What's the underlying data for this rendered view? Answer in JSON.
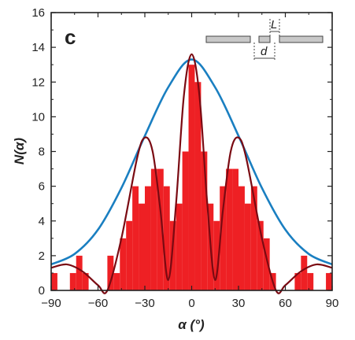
{
  "chart_data": {
    "type": "bar",
    "panel_label": "c",
    "xlabel": "α (°)",
    "ylabel": "N(α)",
    "xlim": [
      -90,
      90
    ],
    "ylim": [
      0,
      16
    ],
    "x_ticks": [
      -90,
      -60,
      -30,
      0,
      30,
      60,
      90
    ],
    "x_tick_labels": [
      "−90",
      "−60",
      "−30",
      "0",
      "30",
      "60",
      "90"
    ],
    "y_ticks": [
      0,
      2,
      4,
      6,
      8,
      10,
      12,
      14,
      16
    ],
    "y_tick_labels": [
      "0",
      "2",
      "4",
      "6",
      "8",
      "10",
      "12",
      "14",
      "16"
    ],
    "grid": false,
    "histogram": {
      "bin_width": 4,
      "bin_start": -90,
      "counts": [
        1,
        0,
        0,
        1,
        2,
        1,
        0,
        0,
        0,
        2,
        1,
        3,
        4,
        6,
        5,
        6,
        7,
        7,
        6,
        4,
        5,
        8,
        13,
        12,
        8,
        5,
        4,
        6,
        7,
        7,
        6,
        5,
        6,
        4,
        3,
        1,
        0,
        0,
        0,
        1,
        2,
        1,
        0,
        0,
        1
      ],
      "color": "#ee2024"
    },
    "series": [
      {
        "style": "envelope",
        "color": "#1a7fc1",
        "x": [
          -90,
          -75,
          -60,
          -45,
          -30,
          -15,
          0,
          15,
          30,
          45,
          60,
          75,
          90
        ],
        "y": [
          1.5,
          2.1,
          3.5,
          5.9,
          8.9,
          11.7,
          13.3,
          11.7,
          8.9,
          5.9,
          3.5,
          2.1,
          1.5
        ]
      },
      {
        "style": "fit",
        "color": "#7a0a12",
        "x": [
          -90,
          -80,
          -70,
          -60,
          -54,
          -45,
          -35,
          -30,
          -25,
          -20,
          -15,
          -10,
          -5,
          0,
          5,
          10,
          15,
          20,
          25,
          30,
          35,
          45,
          54,
          60,
          70,
          80,
          90
        ],
        "y": [
          1.3,
          1.5,
          1.1,
          0.3,
          0.0,
          3.0,
          7.6,
          8.8,
          8.0,
          4.6,
          0.6,
          5.0,
          11.2,
          13.6,
          11.2,
          5.0,
          0.6,
          4.6,
          8.0,
          8.8,
          7.6,
          3.0,
          0.0,
          0.3,
          1.1,
          1.5,
          1.3
        ]
      }
    ],
    "inset": {
      "labels": [
        "L",
        "d"
      ],
      "fill": "#c8c8c8"
    }
  }
}
